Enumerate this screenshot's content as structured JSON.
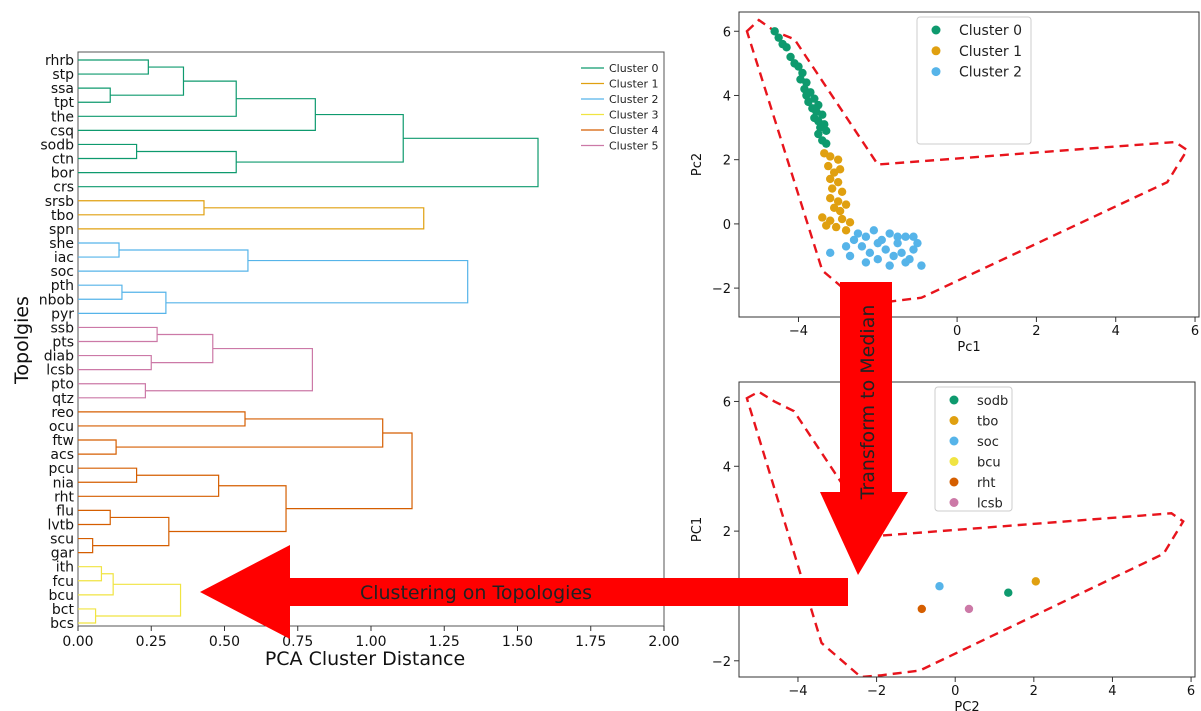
{
  "colors": {
    "cluster_0": "#0e9a6e",
    "cluster_1": "#e0a010",
    "cluster_2": "#56b4e9",
    "cluster_3": "#f0e442",
    "cluster_4": "#d55e00",
    "cluster_5": "#cc79a7",
    "hull": "#e8141c",
    "arrow": "#ff0000"
  },
  "annotations": {
    "arrow_horizontal": "Clustering on Topologies",
    "arrow_vertical": "Transform to Median"
  },
  "chart_data": [
    {
      "type": "dendrogram",
      "xlabel": "PCA Cluster Distance",
      "ylabel": "Topolgies",
      "xlim": [
        0,
        2.0
      ],
      "xticks": [
        "0.00",
        "0.25",
        "0.50",
        "0.75",
        "1.00",
        "1.25",
        "1.50",
        "1.75",
        "2.00"
      ],
      "legend_position": "top-right",
      "leaves": [
        "rhrb",
        "stp",
        "ssa",
        "tpt",
        "the",
        "csq",
        "sodb",
        "ctn",
        "bor",
        "crs",
        "srsb",
        "tbo",
        "spn",
        "she",
        "iac",
        "soc",
        "pth",
        "nbob",
        "pyr",
        "ssb",
        "pts",
        "diab",
        "lcsb",
        "pto",
        "qtz",
        "reo",
        "ocu",
        "ftw",
        "acs",
        "pcu",
        "nia",
        "rht",
        "flu",
        "lvtb",
        "scu",
        "gar",
        "ith",
        "fcu",
        "bcu",
        "bct",
        "bcs"
      ],
      "series": [
        {
          "name": "Cluster 0",
          "leaves": [
            "rhrb",
            "stp",
            "ssa",
            "tpt",
            "the",
            "csq",
            "sodb",
            "ctn",
            "bor",
            "crs"
          ],
          "merges": [
            [
              "rhrb",
              "stp",
              0.24
            ],
            [
              "ssa",
              "tpt",
              0.11
            ],
            [
              "M0",
              "M1",
              0.36
            ],
            [
              "M2",
              "the",
              0.54
            ],
            [
              "M3",
              "csq",
              0.81
            ],
            [
              "sodb",
              "ctn",
              0.2
            ],
            [
              "M5",
              "bor",
              0.54
            ],
            [
              "M4",
              "M6",
              1.11
            ],
            [
              "M7",
              "crs",
              1.57
            ]
          ]
        },
        {
          "name": "Cluster 1",
          "leaves": [
            "srsb",
            "tbo",
            "spn"
          ],
          "merges": [
            [
              "srsb",
              "tbo",
              0.43
            ],
            [
              "M0",
              "spn",
              1.18
            ]
          ]
        },
        {
          "name": "Cluster 2",
          "leaves": [
            "she",
            "iac",
            "soc",
            "pth",
            "nbob",
            "pyr"
          ],
          "merges": [
            [
              "she",
              "iac",
              0.14
            ],
            [
              "M0",
              "soc",
              0.58
            ],
            [
              "pth",
              "nbob",
              0.15
            ],
            [
              "M2",
              "pyr",
              0.3
            ],
            [
              "M1",
              "M3",
              1.33
            ]
          ]
        },
        {
          "name": "Cluster 3",
          "leaves": [
            "ith",
            "fcu",
            "bcu",
            "bct",
            "bcs"
          ],
          "merges": [
            [
              "ith",
              "fcu",
              0.08
            ],
            [
              "M0",
              "bcu",
              0.12
            ],
            [
              "bct",
              "bcs",
              0.06
            ],
            [
              "M1",
              "M2",
              0.35
            ]
          ]
        },
        {
          "name": "Cluster 4",
          "leaves": [
            "reo",
            "ocu",
            "ftw",
            "acs",
            "pcu",
            "nia",
            "rht",
            "flu",
            "lvtb",
            "scu",
            "gar"
          ],
          "merges": [
            [
              "reo",
              "ocu",
              0.57
            ],
            [
              "ftw",
              "acs",
              0.13
            ],
            [
              "M0",
              "M1",
              1.04
            ],
            [
              "pcu",
              "nia",
              0.2
            ],
            [
              "M3",
              "rht",
              0.48
            ],
            [
              "flu",
              "lvtb",
              0.11
            ],
            [
              "scu",
              "gar",
              0.05
            ],
            [
              "M5",
              "M6",
              0.31
            ],
            [
              "M4",
              "M7",
              0.71
            ],
            [
              "M2",
              "M8",
              1.14
            ]
          ]
        },
        {
          "name": "Cluster 5",
          "leaves": [
            "ssb",
            "pts",
            "diab",
            "lcsb",
            "pto",
            "qtz"
          ],
          "merges": [
            [
              "ssb",
              "pts",
              0.27
            ],
            [
              "diab",
              "lcsb",
              0.25
            ],
            [
              "M0",
              "M1",
              0.46
            ],
            [
              "pto",
              "qtz",
              0.23
            ],
            [
              "M2",
              "M3",
              0.8
            ]
          ]
        }
      ]
    },
    {
      "type": "scatter",
      "xlabel": "Pc1",
      "ylabel": "Pc2",
      "xlim": [
        -5.5,
        6.1
      ],
      "ylim": [
        -2.9,
        6.6
      ],
      "xticks": [
        -4,
        -2,
        0,
        2,
        4,
        6
      ],
      "yticks": [
        -2,
        0,
        2,
        4,
        6
      ],
      "legend_position": "top-center",
      "series": [
        {
          "name": "Cluster 0",
          "points": [
            [
              -4.6,
              6.0
            ],
            [
              -4.5,
              5.8
            ],
            [
              -4.4,
              5.6
            ],
            [
              -4.3,
              5.5
            ],
            [
              -4.2,
              5.2
            ],
            [
              -4.1,
              5.0
            ],
            [
              -4.0,
              4.9
            ],
            [
              -3.9,
              4.7
            ],
            [
              -3.95,
              4.5
            ],
            [
              -3.8,
              4.4
            ],
            [
              -3.85,
              4.2
            ],
            [
              -3.7,
              4.1
            ],
            [
              -3.8,
              4.0
            ],
            [
              -3.6,
              3.9
            ],
            [
              -3.75,
              3.8
            ],
            [
              -3.5,
              3.7
            ],
            [
              -3.65,
              3.6
            ],
            [
              -3.55,
              3.5
            ],
            [
              -3.4,
              3.4
            ],
            [
              -3.6,
              3.3
            ],
            [
              -3.5,
              3.2
            ],
            [
              -3.35,
              3.1
            ],
            [
              -3.45,
              3.0
            ],
            [
              -3.3,
              2.9
            ],
            [
              -3.5,
              2.8
            ],
            [
              -3.4,
              2.6
            ],
            [
              -3.3,
              2.5
            ]
          ]
        },
        {
          "name": "Cluster 1",
          "points": [
            [
              -3.35,
              2.2
            ],
            [
              -3.2,
              2.1
            ],
            [
              -3.0,
              2.0
            ],
            [
              -3.25,
              1.8
            ],
            [
              -3.1,
              1.6
            ],
            [
              -2.95,
              1.7
            ],
            [
              -3.2,
              1.4
            ],
            [
              -3.0,
              1.3
            ],
            [
              -3.15,
              1.1
            ],
            [
              -2.9,
              1.0
            ],
            [
              -3.2,
              0.8
            ],
            [
              -3.0,
              0.7
            ],
            [
              -2.8,
              0.6
            ],
            [
              -3.1,
              0.5
            ],
            [
              -2.95,
              0.4
            ],
            [
              -3.4,
              0.2
            ],
            [
              -3.2,
              0.1
            ],
            [
              -2.9,
              0.15
            ],
            [
              -3.05,
              -0.1
            ],
            [
              -2.8,
              -0.2
            ],
            [
              -2.7,
              0.05
            ],
            [
              -3.3,
              -0.05
            ]
          ]
        },
        {
          "name": "Cluster 2",
          "points": [
            [
              -2.5,
              -0.3
            ],
            [
              -2.3,
              -0.4
            ],
            [
              -2.1,
              -0.2
            ],
            [
              -1.9,
              -0.5
            ],
            [
              -1.7,
              -0.3
            ],
            [
              -1.5,
              -0.6
            ],
            [
              -1.3,
              -0.4
            ],
            [
              -1.1,
              -0.8
            ],
            [
              -0.9,
              -1.3
            ],
            [
              -2.4,
              -0.7
            ],
            [
              -2.2,
              -0.9
            ],
            [
              -2.0,
              -1.1
            ],
            [
              -1.8,
              -0.8
            ],
            [
              -1.6,
              -1.0
            ],
            [
              -1.4,
              -0.9
            ],
            [
              -1.2,
              -1.1
            ],
            [
              -2.6,
              -0.5
            ],
            [
              -2.0,
              -0.6
            ],
            [
              -1.5,
              -0.4
            ],
            [
              -1.0,
              -0.6
            ],
            [
              -2.3,
              -1.2
            ],
            [
              -1.7,
              -1.3
            ],
            [
              -3.2,
              -0.9
            ],
            [
              -2.8,
              -0.7
            ],
            [
              -2.7,
              -1.0
            ],
            [
              -1.3,
              -1.2
            ],
            [
              -1.1,
              -0.4
            ]
          ]
        }
      ],
      "hull": [
        [
          -5.3,
          6.0
        ],
        [
          -5.0,
          6.35
        ],
        [
          -4.6,
          6.0
        ],
        [
          -4.1,
          5.75
        ],
        [
          -2.0,
          1.85
        ],
        [
          5.5,
          2.55
        ],
        [
          5.8,
          2.3
        ],
        [
          5.3,
          1.3
        ],
        [
          -0.9,
          -2.3
        ],
        [
          -1.9,
          -2.45
        ],
        [
          -2.4,
          -2.5
        ],
        [
          -3.4,
          -1.45
        ]
      ]
    },
    {
      "type": "scatter",
      "xlabel": "PC2",
      "ylabel": "PC1",
      "xlim": [
        -5.5,
        6.1
      ],
      "ylim": [
        -2.5,
        6.6
      ],
      "xticks": [
        -4,
        -2,
        0,
        2,
        4,
        6
      ],
      "yticks": [
        -2,
        0,
        2,
        4,
        6
      ],
      "legend_position": "top-center",
      "series": [
        {
          "name": "sodb",
          "points": [
            [
              1.35,
              0.1
            ]
          ]
        },
        {
          "name": "tbo",
          "points": [
            [
              2.05,
              0.45
            ]
          ]
        },
        {
          "name": "soc",
          "points": [
            [
              -0.4,
              0.3
            ]
          ]
        },
        {
          "name": "bcu",
          "points": [
            [
              -2.9,
              0.15
            ]
          ]
        },
        {
          "name": "rht",
          "points": [
            [
              -0.85,
              -0.4
            ]
          ]
        },
        {
          "name": "lcsb",
          "points": [
            [
              0.35,
              -0.4
            ]
          ]
        }
      ],
      "hull": [
        [
          -5.3,
          6.1
        ],
        [
          -5.0,
          6.3
        ],
        [
          -4.6,
          6.0
        ],
        [
          -4.1,
          5.7
        ],
        [
          -2.0,
          1.85
        ],
        [
          5.5,
          2.55
        ],
        [
          5.8,
          2.3
        ],
        [
          5.3,
          1.3
        ],
        [
          -0.9,
          -2.3
        ],
        [
          -1.9,
          -2.45
        ],
        [
          -2.4,
          -2.5
        ],
        [
          -3.4,
          -1.45
        ]
      ]
    }
  ]
}
